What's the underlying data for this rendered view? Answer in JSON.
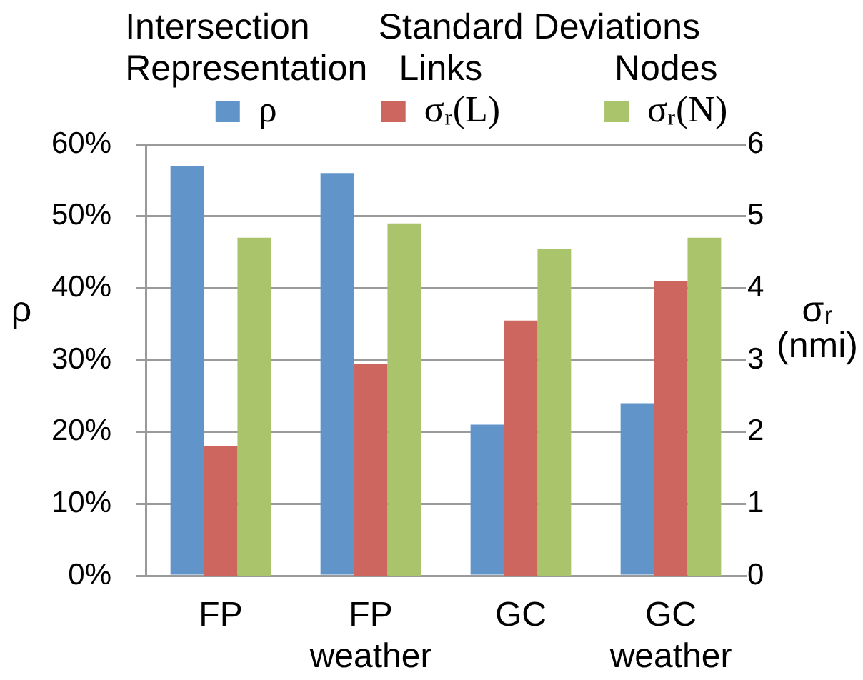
{
  "chart_data": {
    "type": "bar",
    "categories": [
      "FP",
      "FP weather",
      "GC",
      "GC weather"
    ],
    "series": [
      {
        "name": "ρ",
        "color": "#6195c9",
        "values": [
          57,
          56,
          21,
          24
        ]
      },
      {
        "name": "σᵣ(L)",
        "color": "#cd665f",
        "values": [
          1.8,
          2.95,
          3.55,
          4.1
        ],
        "axis": "y2"
      },
      {
        "name": "σᵣ(N)",
        "color": "#a9c46b",
        "values": [
          4.7,
          4.9,
          4.55,
          4.7
        ],
        "axis": "y2"
      }
    ],
    "ylabel": "ρ",
    "y2label": "σᵣ (nmi)",
    "ylim": [
      0,
      60
    ],
    "yticks": [
      {
        "value": 0,
        "label": "0%"
      },
      {
        "value": 10,
        "label": "10%"
      },
      {
        "value": 20,
        "label": "20%"
      },
      {
        "value": 30,
        "label": "30%"
      },
      {
        "value": 40,
        "label": "40%"
      },
      {
        "value": 50,
        "label": "50%"
      },
      {
        "value": 60,
        "label": "60%"
      }
    ],
    "y2lim": [
      0,
      6
    ],
    "y2ticks": [
      0,
      1,
      2,
      3,
      4,
      5,
      6
    ],
    "annotations": [
      "Intersection Representation",
      "Standard Deviations",
      "Links",
      "Nodes"
    ],
    "grid": "y",
    "legend": "top"
  }
}
